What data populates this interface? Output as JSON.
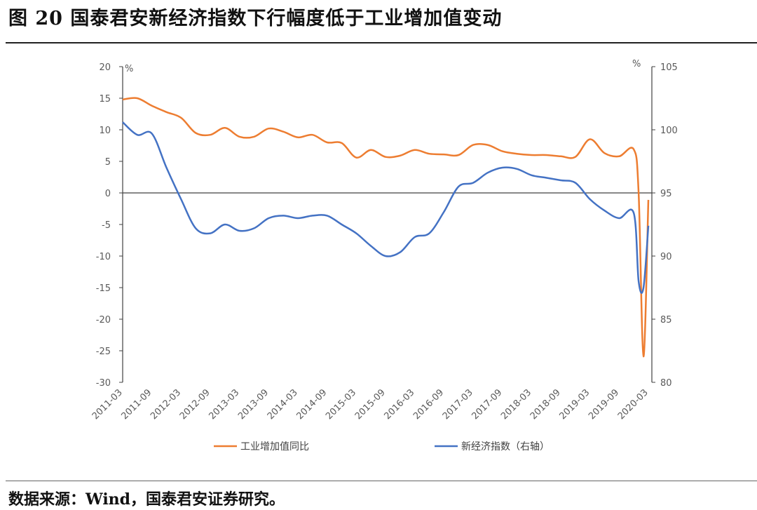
{
  "header": {
    "title": "图 20 国泰君安新经济指数下行幅度低于工业增加值变动"
  },
  "footer": {
    "source": "数据来源：Wind，国泰君安证券研究。"
  },
  "colors": {
    "series_industrial": "#ED7D31",
    "series_new_economy": "#4472C4",
    "axis": "#404040",
    "tick_text": "#595959"
  },
  "chart_data": {
    "type": "line",
    "title": "国泰君安新经济指数下行幅度低于工业增加值变动",
    "xlabel": "",
    "ylabel": "%",
    "ylabel_right": "%",
    "ylim": [
      -30,
      20
    ],
    "ylim_right": [
      80,
      105
    ],
    "yticks": [
      "20",
      "15",
      "10",
      "5",
      "0",
      "-5",
      "-10",
      "-15",
      "-20",
      "-25",
      "-30"
    ],
    "yticks_right": [
      "105",
      "100",
      "95",
      "90",
      "85",
      "80"
    ],
    "x_tick_labels": [
      "2011-03",
      "2011-09",
      "2012-03",
      "2012-09",
      "2013-03",
      "2013-09",
      "2014-03",
      "2014-09",
      "2015-03",
      "2015-09",
      "2016-03",
      "2016-09",
      "2017-03",
      "2017-09",
      "2018-03",
      "2018-09",
      "2019-03",
      "2019-09",
      "2020-03"
    ],
    "grid": false,
    "legend_position": "bottom",
    "x": [
      "2011-03",
      "2011-06",
      "2011-09",
      "2011-12",
      "2012-03",
      "2012-06",
      "2012-09",
      "2012-12",
      "2013-03",
      "2013-06",
      "2013-09",
      "2013-12",
      "2014-03",
      "2014-06",
      "2014-09",
      "2014-12",
      "2015-03",
      "2015-06",
      "2015-09",
      "2015-12",
      "2016-03",
      "2016-06",
      "2016-09",
      "2016-12",
      "2017-03",
      "2017-06",
      "2017-09",
      "2017-12",
      "2018-03",
      "2018-06",
      "2018-09",
      "2018-12",
      "2019-03",
      "2019-06",
      "2019-09",
      "2019-12",
      "2020-01",
      "2020-02",
      "2020-03"
    ],
    "series": [
      {
        "name": "工业增加值同比",
        "axis": "left",
        "values": [
          14.8,
          15.0,
          13.8,
          12.8,
          11.9,
          9.5,
          9.2,
          10.3,
          8.9,
          8.9,
          10.2,
          9.7,
          8.8,
          9.2,
          8.0,
          7.9,
          5.6,
          6.8,
          5.7,
          5.9,
          6.8,
          6.2,
          6.1,
          6.0,
          7.6,
          7.6,
          6.6,
          6.2,
          6.0,
          6.0,
          5.8,
          5.7,
          8.5,
          6.3,
          5.8,
          6.9,
          0.0,
          -25.9,
          -1.1
        ]
      },
      {
        "name": "新经济指数（右轴）",
        "axis": "right",
        "values": [
          100.6,
          99.6,
          99.7,
          97.0,
          94.5,
          92.2,
          91.8,
          92.5,
          92.0,
          92.2,
          93.0,
          93.2,
          93.0,
          93.2,
          93.2,
          92.5,
          91.8,
          90.8,
          90.0,
          90.3,
          91.5,
          91.8,
          93.5,
          95.5,
          95.8,
          96.6,
          97.0,
          96.9,
          96.4,
          96.2,
          96.0,
          95.8,
          94.5,
          93.6,
          93.0,
          93.4,
          88.0,
          87.5,
          92.4
        ]
      }
    ]
  },
  "axes": {
    "left_unit": "%",
    "right_unit": "%"
  },
  "legend": {
    "items": [
      {
        "label": "工业增加值同比"
      },
      {
        "label": "新经济指数（右轴）"
      }
    ]
  }
}
